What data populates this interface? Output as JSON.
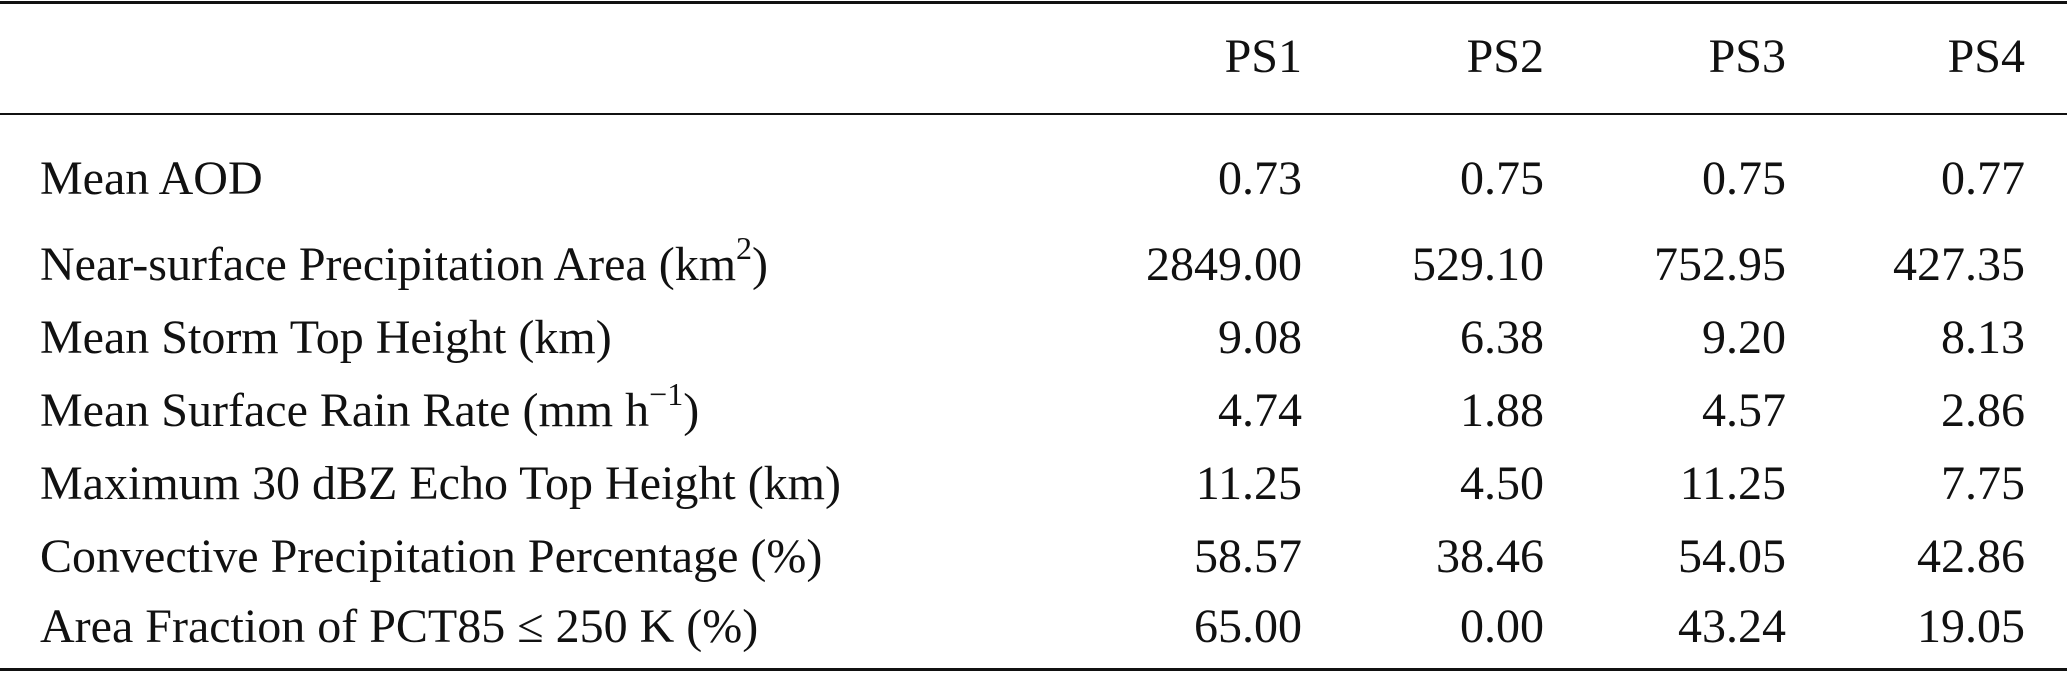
{
  "table": {
    "columns": [
      "PS1",
      "PS2",
      "PS3",
      "PS4"
    ],
    "rows": [
      {
        "label": "Mean AOD",
        "values": [
          "0.73",
          "0.75",
          "0.75",
          "0.77"
        ]
      },
      {
        "label": "Near-surface Precipitation Area (km",
        "label_sup": "2",
        "label_after": ")",
        "values": [
          "2849.00",
          "529.10",
          "752.95",
          "427.35"
        ]
      },
      {
        "label": "Mean Storm Top Height (km)",
        "values": [
          "9.08",
          "6.38",
          "9.20",
          "8.13"
        ]
      },
      {
        "label": "Mean Surface Rain Rate (mm h",
        "label_sup": "−1",
        "label_after": ")",
        "values": [
          "4.74",
          "1.88",
          "4.57",
          "2.86"
        ]
      },
      {
        "label": "Maximum 30 dBZ Echo Top Height (km)",
        "values": [
          "11.25",
          "4.50",
          "11.25",
          "7.75"
        ]
      },
      {
        "label": "Convective Precipitation Percentage (%)",
        "values": [
          "58.57",
          "38.46",
          "54.05",
          "42.86"
        ]
      },
      {
        "label": "Area Fraction of PCT85 ≤ 250 K (%)",
        "values": [
          "65.00",
          "0.00",
          "43.24",
          "19.05"
        ]
      }
    ]
  }
}
